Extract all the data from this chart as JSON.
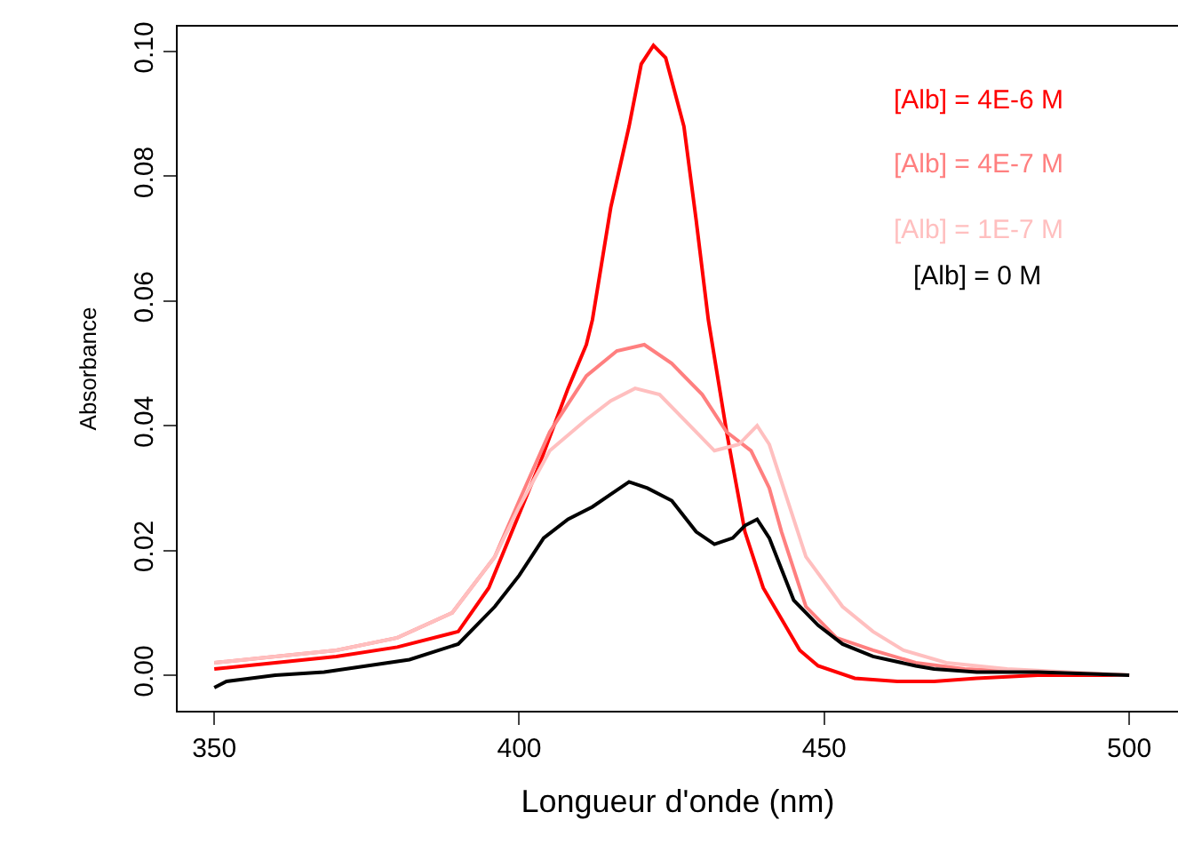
{
  "chart_data": {
    "type": "line",
    "xlabel": "Longueur d'onde (nm)",
    "ylabel": "Absorbance",
    "xlim": [
      344,
      508
    ],
    "ylim": [
      -0.0057,
      0.104
    ],
    "xticks": [
      350,
      400,
      450,
      500
    ],
    "yticks": [
      {
        "value": 0,
        "label": "0.00"
      },
      {
        "value": 0.02,
        "label": "0.02"
      },
      {
        "value": 0.04,
        "label": "0.04"
      },
      {
        "value": 0.06,
        "label": "0.06"
      },
      {
        "value": 0.08,
        "label": "0.08"
      },
      {
        "value": 0.1,
        "label": "0.10"
      }
    ],
    "legend": "top right",
    "marker": "none",
    "line_style": "solid",
    "series": [
      {
        "name": "[Alb] = 4E-6 M",
        "color": "#ff0000",
        "x": [
          350,
          360,
          370,
          380,
          390,
          395,
          403,
          408,
          411,
          412,
          415,
          418,
          420,
          422,
          424,
          427,
          429,
          431,
          434,
          437,
          440,
          443,
          446,
          449,
          455,
          462,
          468,
          475,
          485,
          495,
          500
        ],
        "values": [
          0.001,
          0.002,
          0.003,
          0.0045,
          0.007,
          0.014,
          0.033,
          0.046,
          0.053,
          0.057,
          0.075,
          0.088,
          0.098,
          0.101,
          0.099,
          0.088,
          0.073,
          0.057,
          0.039,
          0.023,
          0.014,
          0.009,
          0.004,
          0.0015,
          -0.0005,
          -0.001,
          -0.001,
          -0.0005,
          0,
          0,
          0
        ]
      },
      {
        "name": "[Alb] = 4E-7 M",
        "color": "#ff7f7f",
        "x": [
          350,
          360,
          370,
          380,
          389,
          396,
          400,
          405,
          411,
          416,
          420.5,
          425,
          430,
          434,
          438,
          441,
          443,
          447,
          452,
          458,
          465,
          473,
          485,
          500
        ],
        "values": [
          0.002,
          0.003,
          0.004,
          0.006,
          0.01,
          0.019,
          0.028,
          0.039,
          0.048,
          0.052,
          0.053,
          0.05,
          0.045,
          0.039,
          0.036,
          0.03,
          0.023,
          0.011,
          0.006,
          0.004,
          0.002,
          0.001,
          0.0005,
          0
        ]
      },
      {
        "name": "[Alb] = 1E-7 M",
        "color": "#ffbfbf",
        "x": [
          350,
          360,
          370,
          380,
          389,
          396,
          400,
          405,
          411,
          415,
          419,
          423,
          427,
          432,
          436,
          439,
          441,
          443,
          447,
          453,
          458,
          463,
          470,
          480,
          490,
          500
        ],
        "values": [
          0.002,
          0.003,
          0.004,
          0.006,
          0.01,
          0.019,
          0.027,
          0.036,
          0.041,
          0.044,
          0.046,
          0.045,
          0.041,
          0.036,
          0.037,
          0.04,
          0.037,
          0.031,
          0.019,
          0.011,
          0.007,
          0.004,
          0.002,
          0.001,
          0.0005,
          0
        ]
      },
      {
        "name": "[Alb] = 0 M",
        "color": "#000000",
        "x": [
          350,
          352,
          360,
          368,
          375,
          382,
          390,
          396,
          400,
          404,
          408,
          412,
          415,
          418,
          421,
          425,
          429,
          432,
          435,
          437,
          439,
          441,
          443,
          445,
          449,
          453,
          458,
          465,
          468,
          475,
          485,
          500
        ],
        "values": [
          -0.002,
          -0.001,
          0,
          0.0005,
          0.0015,
          0.0025,
          0.005,
          0.011,
          0.016,
          0.022,
          0.025,
          0.027,
          0.029,
          0.031,
          0.03,
          0.028,
          0.023,
          0.021,
          0.022,
          0.024,
          0.025,
          0.022,
          0.017,
          0.012,
          0.008,
          0.005,
          0.003,
          0.0015,
          0.001,
          0.0005,
          0.0005,
          0
        ]
      }
    ]
  }
}
